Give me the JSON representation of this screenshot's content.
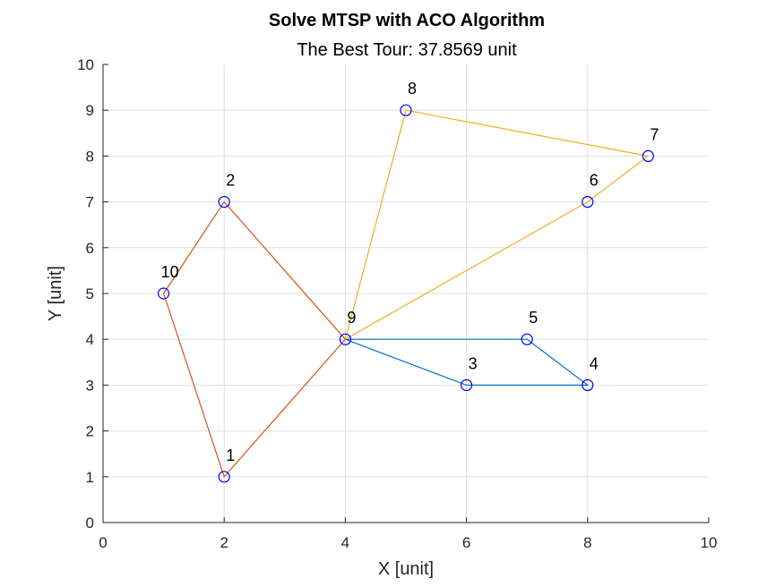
{
  "chart_data": {
    "type": "line",
    "title": "Solve MTSP with ACO Algorithm",
    "subtitle": "The Best Tour: 37.8569 unit",
    "xlabel": "X [unit]",
    "ylabel": "Y [unit]",
    "xlim": [
      0,
      10
    ],
    "ylim": [
      0,
      10
    ],
    "xticks": [
      0,
      2,
      4,
      6,
      8,
      10
    ],
    "yticks": [
      0,
      1,
      2,
      3,
      4,
      5,
      6,
      7,
      8,
      9,
      10
    ],
    "grid": true,
    "cities": [
      {
        "label": "1",
        "x": 2,
        "y": 1
      },
      {
        "label": "2",
        "x": 2,
        "y": 7
      },
      {
        "label": "3",
        "x": 6,
        "y": 3
      },
      {
        "label": "4",
        "x": 8,
        "y": 3
      },
      {
        "label": "5",
        "x": 7,
        "y": 4
      },
      {
        "label": "6",
        "x": 8,
        "y": 7
      },
      {
        "label": "7",
        "x": 9,
        "y": 8
      },
      {
        "label": "8",
        "x": 5,
        "y": 9
      },
      {
        "label": "9",
        "x": 4,
        "y": 4
      },
      {
        "label": "10",
        "x": 1,
        "y": 5
      }
    ],
    "marker_color": "#0000ff",
    "series": [
      {
        "color": "#0072bd",
        "route": [
          "9",
          "3",
          "4",
          "5",
          "9"
        ]
      },
      {
        "color": "#d95319",
        "route": [
          "9",
          "2",
          "10",
          "1",
          "9"
        ]
      },
      {
        "color": "#edb120",
        "route": [
          "9",
          "8",
          "7",
          "6",
          "9"
        ]
      }
    ]
  }
}
